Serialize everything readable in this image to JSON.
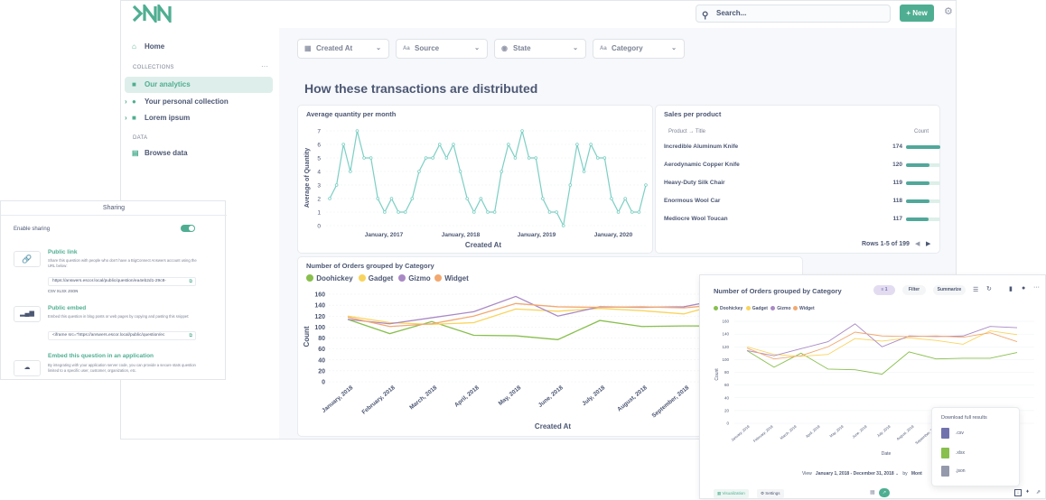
{
  "topbar": {
    "search_placeholder": "Search...",
    "new_label": "New"
  },
  "sidebar": {
    "home": "Home",
    "collections_header": "COLLECTIONS",
    "collections": [
      "Our analytics",
      "Your personal collection",
      "Lorem ipsum"
    ],
    "data_header": "DATA",
    "browse_data": "Browse data"
  },
  "filters": [
    "Created At",
    "Source",
    "State",
    "Category"
  ],
  "dashboard_title": "How these transactions are distributed",
  "cards": {
    "quantity": {
      "title": "Average quantity per month",
      "xlabel": "Created At",
      "ylabel": "Average of Quantity",
      "xticks": [
        "January, 2017",
        "January, 2018",
        "January, 2019",
        "January, 2020"
      ],
      "yticks": [
        "0",
        "1",
        "2",
        "3",
        "4",
        "5",
        "6",
        "7"
      ]
    },
    "sales": {
      "title": "Sales per product",
      "col_product": "Product → Title",
      "col_count": "Count",
      "rows": [
        {
          "name": "Incredible Aluminum Knife",
          "count": "174",
          "frac": 1.0
        },
        {
          "name": "Aerodynamic Copper Knife",
          "count": "120",
          "frac": 0.69
        },
        {
          "name": "Heavy-Duty Silk Chair",
          "count": "119",
          "frac": 0.68
        },
        {
          "name": "Enormous Wool Car",
          "count": "118",
          "frac": 0.68
        },
        {
          "name": "Mediocre Wool Toucan",
          "count": "117",
          "frac": 0.67
        }
      ],
      "footer": "Rows 1-5 of 199"
    },
    "orders": {
      "title": "Number of Orders grouped by Category",
      "xlabel": "Created At",
      "ylabel": "Count",
      "legend": [
        "Doohickey",
        "Gadget",
        "Gizmo",
        "Widget"
      ],
      "yticks": [
        "0",
        "20",
        "40",
        "60",
        "80",
        "100",
        "120",
        "140",
        "160"
      ],
      "xticks": [
        "January, 2018",
        "February, 2018",
        "March, 2018",
        "April, 2018",
        "May, 2018",
        "June, 2018",
        "July, 2018",
        "August, 2018",
        "September, 2018",
        "October, 2018",
        "Nov"
      ]
    }
  },
  "sharing": {
    "title": "Sharing",
    "enable_label": "Enable sharing",
    "public_link_title": "Public link",
    "public_link_desc": "Share this question with people who don't have a BigConnect Answers account using the URL below:",
    "public_link_url": "https://answers.escor.local/public/question/ea4eb2d1-29c8-",
    "formats": "CSV  XLSX  JSON",
    "embed_title": "Public embed",
    "embed_desc": "Embed this question in blog posts or web pages by copying and pasting this snippet:",
    "embed_code": "<iframe src=\"https://answers.escor.local/public/question/ec",
    "app_title": "Embed this question in an application",
    "app_desc": "By integrating with your application server code, you can provide a secure stats question limited to a specific user, customer, organization, etc."
  },
  "question": {
    "title": "Number of Orders grouped by Category",
    "filter_count": "1",
    "filter_label": "Filter",
    "summarize_label": "Summarize",
    "legend": [
      "Doohickey",
      "Gadget",
      "Gizmo",
      "Widget"
    ],
    "yticks": [
      "0",
      "20",
      "40",
      "60",
      "80",
      "100",
      "120",
      "140",
      "160"
    ],
    "xticks": [
      "January, 2018",
      "February, 2018",
      "March, 2018",
      "April, 2018",
      "May, 2018",
      "June, 2018",
      "July, 2018",
      "August, 2018",
      "September, 2018",
      "October, 2018",
      "November, 2018",
      "December, 2018"
    ],
    "xlabel": "Date",
    "ylabel": "Count",
    "download_title": "Download full results",
    "downloads": [
      ".csv",
      ".xlsx",
      ".json"
    ],
    "view_label": "View",
    "date_range": "January 1, 2018 - December 31, 2018",
    "by_label": "by",
    "month_label": "Mont",
    "visualization_label": "Visualization",
    "settings_label": "Settings"
  },
  "colors": {
    "brand": "#4fae91",
    "doohickey": "#88bf4d",
    "gadget": "#f9d45c",
    "gizmo": "#a989c5",
    "widget": "#f2a86f",
    "line_teal": "#7ccfc4"
  },
  "chart_data": [
    {
      "type": "line",
      "title": "Average quantity per month",
      "xlabel": "Created At",
      "ylabel": "Average of Quantity",
      "ylim": [
        0,
        7
      ],
      "series": [
        {
          "values": [
            2,
            3,
            6,
            4,
            7,
            5,
            5,
            2,
            1,
            2,
            1,
            1,
            2,
            4,
            5,
            5,
            6,
            5,
            6,
            4,
            2,
            1,
            2,
            1,
            1,
            4,
            6,
            5,
            7,
            5,
            5,
            2,
            1,
            1,
            0,
            3,
            6,
            4,
            6,
            5,
            5,
            2,
            1,
            2,
            1,
            1,
            3
          ]
        }
      ]
    },
    {
      "type": "line",
      "title": "Number of Orders grouped by Category",
      "xlabel": "Created At",
      "ylabel": "Count",
      "ylim": [
        0,
        160
      ],
      "categories": [
        "January, 2018",
        "February, 2018",
        "March, 2018",
        "April, 2018",
        "May, 2018",
        "June, 2018",
        "July, 2018",
        "August, 2018",
        "September, 2018",
        "October, 2018",
        "November, 2018"
      ],
      "series": [
        {
          "name": "Doohickey",
          "values": [
            114,
            88,
            110,
            85,
            84,
            77,
            112,
            101,
            102,
            102,
            111
          ]
        },
        {
          "name": "Gadget",
          "values": [
            120,
            108,
            105,
            108,
            133,
            129,
            134,
            130,
            124,
            145,
            139
          ]
        },
        {
          "name": "Gizmo",
          "values": [
            114,
            106,
            117,
            128,
            156,
            120,
            137,
            136,
            137,
            152,
            150
          ]
        },
        {
          "name": "Widget",
          "values": [
            118,
            101,
            106,
            120,
            143,
            137,
            136,
            137,
            135,
            142,
            128
          ]
        }
      ]
    }
  ]
}
